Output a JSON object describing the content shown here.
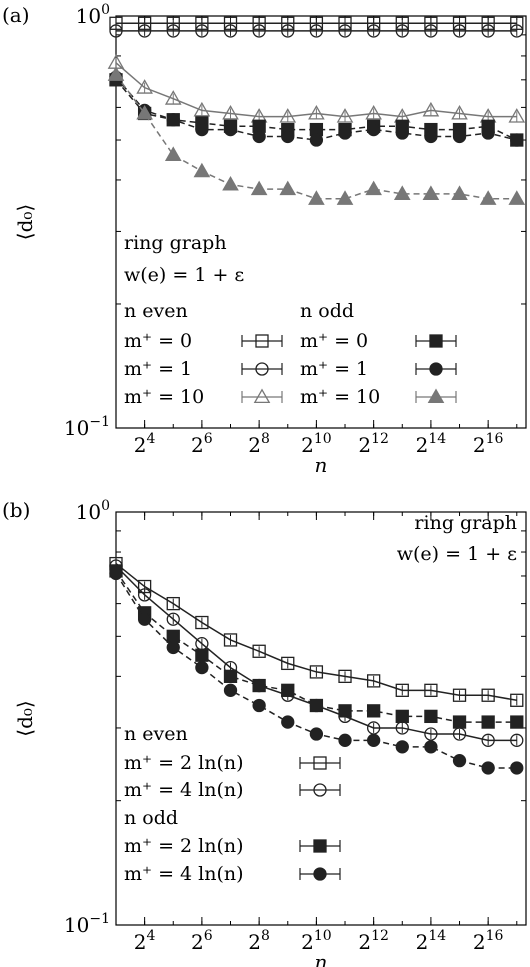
{
  "chart_data": [
    {
      "type": "scatter",
      "panel_label": "(a)",
      "xlabel": "n",
      "ylabel": "⟨d₀⟩",
      "x_scale": "log2",
      "y_scale": "log10",
      "xlim": [
        8,
        163840
      ],
      "ylim": [
        0.1,
        1.0
      ],
      "x_ticks": [
        {
          "value": 16,
          "base": "2",
          "exp": "4"
        },
        {
          "value": 64,
          "base": "2",
          "exp": "6"
        },
        {
          "value": 256,
          "base": "2",
          "exp": "8"
        },
        {
          "value": 1024,
          "base": "2",
          "exp": "10"
        },
        {
          "value": 4096,
          "base": "2",
          "exp": "12"
        },
        {
          "value": 16384,
          "base": "2",
          "exp": "14"
        },
        {
          "value": 65536,
          "base": "2",
          "exp": "16"
        }
      ],
      "y_ticks": [
        {
          "value": 1.0,
          "base": "10",
          "exp": "0"
        },
        {
          "value": 0.1,
          "base": "10",
          "exp": "−1"
        }
      ],
      "annotation": [
        "ring graph",
        "w(e) = 1 + ε"
      ],
      "legend_headers": [
        "n even",
        "n odd"
      ],
      "legend_position": "bottom-left",
      "x": [
        8,
        16,
        32,
        64,
        128,
        256,
        512,
        1024,
        2048,
        4096,
        8192,
        16384,
        32768,
        65536,
        131072
      ],
      "series": [
        {
          "name": "m⁺ = 0",
          "group": "n even",
          "marker": "square-open",
          "values": [
            0.96,
            0.96,
            0.96,
            0.96,
            0.96,
            0.96,
            0.96,
            0.96,
            0.96,
            0.96,
            0.96,
            0.96,
            0.96,
            0.96,
            0.96
          ]
        },
        {
          "name": "m⁺ = 1",
          "group": "n even",
          "marker": "circle-open",
          "values": [
            0.92,
            0.92,
            0.92,
            0.92,
            0.92,
            0.92,
            0.92,
            0.92,
            0.92,
            0.92,
            0.92,
            0.92,
            0.92,
            0.92,
            0.92
          ]
        },
        {
          "name": "m⁺ = 10",
          "group": "n even",
          "marker": "triangle-open",
          "values": [
            0.77,
            0.67,
            0.63,
            0.59,
            0.58,
            0.57,
            0.57,
            0.58,
            0.57,
            0.58,
            0.57,
            0.59,
            0.58,
            0.57,
            0.57
          ]
        },
        {
          "name": "m⁺ = 0",
          "group": "n odd",
          "marker": "square-filled",
          "values": [
            0.7,
            0.58,
            0.56,
            0.55,
            0.54,
            0.54,
            0.53,
            0.53,
            0.53,
            0.54,
            0.54,
            0.53,
            0.53,
            0.54,
            0.5
          ]
        },
        {
          "name": "m⁺ = 1",
          "group": "n odd",
          "marker": "circle-filled",
          "values": [
            0.71,
            0.59,
            0.56,
            0.53,
            0.53,
            0.51,
            0.51,
            0.5,
            0.52,
            0.53,
            0.52,
            0.51,
            0.51,
            0.52,
            0.5
          ]
        },
        {
          "name": "m⁺ = 10",
          "group": "n odd",
          "marker": "triangle-filled",
          "values": [
            0.72,
            0.58,
            0.46,
            0.42,
            0.39,
            0.38,
            0.38,
            0.36,
            0.36,
            0.38,
            0.37,
            0.37,
            0.37,
            0.36,
            0.36
          ]
        }
      ]
    },
    {
      "type": "scatter",
      "panel_label": "(b)",
      "xlabel": "n",
      "ylabel": "⟨d₀⟩",
      "x_scale": "log2",
      "y_scale": "log10",
      "xlim": [
        8,
        163840
      ],
      "ylim": [
        0.1,
        1.0
      ],
      "x_ticks": [
        {
          "value": 16,
          "base": "2",
          "exp": "4"
        },
        {
          "value": 64,
          "base": "2",
          "exp": "6"
        },
        {
          "value": 256,
          "base": "2",
          "exp": "8"
        },
        {
          "value": 1024,
          "base": "2",
          "exp": "10"
        },
        {
          "value": 4096,
          "base": "2",
          "exp": "12"
        },
        {
          "value": 16384,
          "base": "2",
          "exp": "14"
        },
        {
          "value": 65536,
          "base": "2",
          "exp": "16"
        }
      ],
      "y_ticks": [
        {
          "value": 1.0,
          "base": "10",
          "exp": "0"
        },
        {
          "value": 0.1,
          "base": "10",
          "exp": "−1"
        }
      ],
      "annotation": [
        "ring graph",
        "w(e) = 1 + ε"
      ],
      "legend_headers": [
        "n even",
        "n odd"
      ],
      "legend_position": "bottom-left",
      "x": [
        8,
        16,
        32,
        64,
        128,
        256,
        512,
        1024,
        2048,
        4096,
        8192,
        16384,
        32768,
        65536,
        131072
      ],
      "series": [
        {
          "name": "m⁺ = 2 ln(n)",
          "group": "n even",
          "marker": "square-open",
          "values": [
            0.75,
            0.66,
            0.6,
            0.54,
            0.49,
            0.46,
            0.43,
            0.41,
            0.4,
            0.39,
            0.37,
            0.37,
            0.36,
            0.36,
            0.35
          ]
        },
        {
          "name": "m⁺ = 4 ln(n)",
          "group": "n even",
          "marker": "circle-open",
          "values": [
            0.74,
            0.63,
            0.55,
            0.48,
            0.42,
            0.38,
            0.36,
            0.34,
            0.32,
            0.3,
            0.3,
            0.29,
            0.29,
            0.28,
            0.28
          ]
        },
        {
          "name": "m⁺ = 2 ln(n)",
          "group": "n odd",
          "marker": "square-filled",
          "values": [
            0.72,
            0.57,
            0.5,
            0.45,
            0.4,
            0.38,
            0.37,
            0.34,
            0.33,
            0.33,
            0.32,
            0.32,
            0.31,
            0.31,
            0.31
          ]
        },
        {
          "name": "m⁺ = 4 ln(n)",
          "group": "n odd",
          "marker": "circle-filled",
          "values": [
            0.71,
            0.55,
            0.47,
            0.42,
            0.37,
            0.34,
            0.31,
            0.29,
            0.28,
            0.28,
            0.27,
            0.27,
            0.25,
            0.24,
            0.24
          ]
        }
      ]
    }
  ]
}
